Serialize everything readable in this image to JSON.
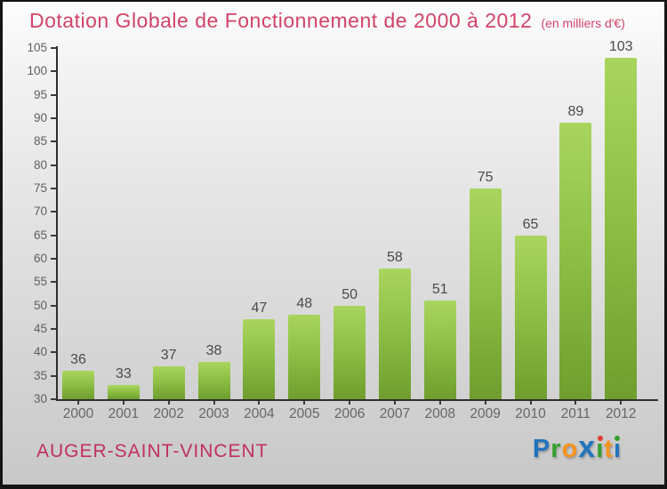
{
  "title": "Dotation Globale de Fonctionnement de 2000 à 2012",
  "subtitle": "(en milliers d'€)",
  "footer": {
    "commune": "AUGER-SAINT-VINCENT",
    "logo": {
      "name": "Proxiti",
      "letters": [
        {
          "ch": "P",
          "color": "#2173bd"
        },
        {
          "ch": "r",
          "color": "#33a02c"
        },
        {
          "ch": "o",
          "color": "#f7941e"
        },
        {
          "ch": "x",
          "color": "#2173bd",
          "big": true
        },
        {
          "ch": "i",
          "color": "#33a02c",
          "dot": "#e03c31"
        },
        {
          "ch": "t",
          "color": "#f7941e"
        },
        {
          "ch": "i",
          "color": "#2173bd",
          "dot": "#33a02c"
        }
      ]
    }
  },
  "chart_data": {
    "type": "bar",
    "title": "Dotation Globale de Fonctionnement de 2000 à 2012",
    "subtitle": "(en milliers d'€)",
    "categories": [
      "2000",
      "2001",
      "2002",
      "2003",
      "2004",
      "2005",
      "2006",
      "2007",
      "2008",
      "2009",
      "2010",
      "2011",
      "2012"
    ],
    "values": [
      36,
      33,
      37,
      38,
      47,
      48,
      50,
      58,
      51,
      75,
      65,
      89,
      103
    ],
    "xlabel": "",
    "ylabel": "",
    "ylim": [
      30,
      105
    ],
    "ytick_step": 5,
    "grid": false,
    "legend": false,
    "value_labels": true,
    "colors": {
      "bar_top": "#a9d55f",
      "bar_bottom": "#6f9e2e",
      "axis": "#2e2e2e",
      "tick_label": "#5f5f5f",
      "value_label": "#4a4a4a",
      "title": "#d24369",
      "background_top": "#fbfbfb",
      "background_bottom": "#c8c8c8"
    }
  }
}
